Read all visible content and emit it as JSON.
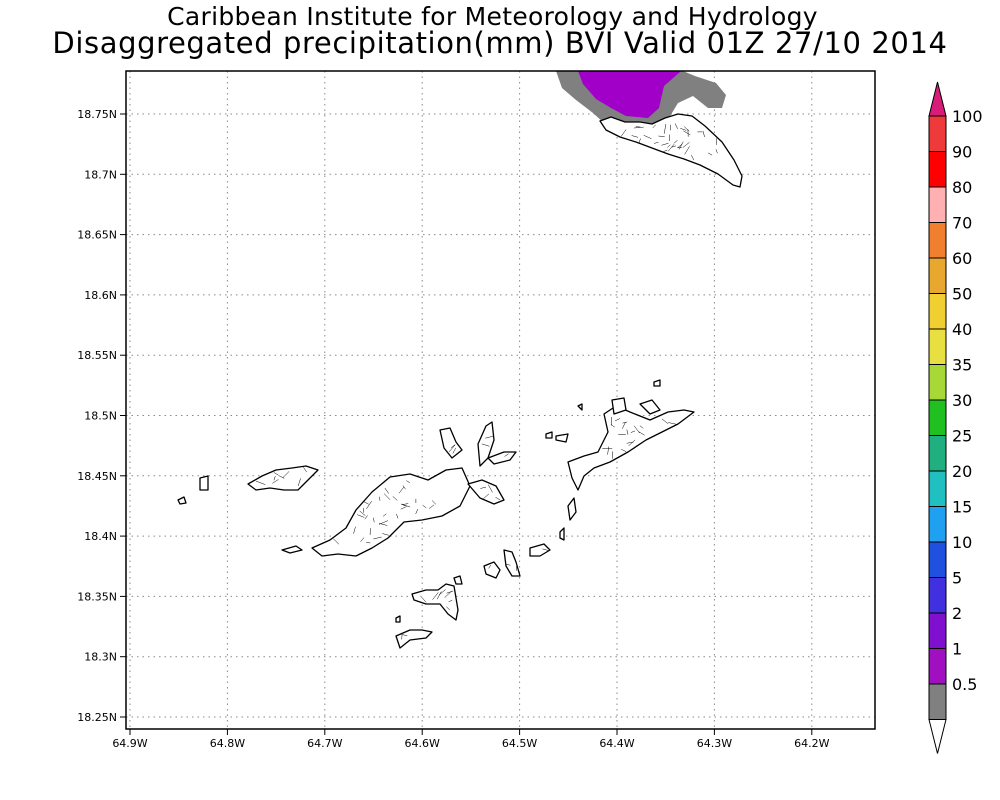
{
  "title_line1": "Caribbean Institute for Meteorology and Hydrology",
  "title_line2": "Disaggregated precipitation(mm) BVI Valid 01Z 27/10 2014",
  "map": {
    "x_ticks": [
      "64.9W",
      "64.8W",
      "64.7W",
      "64.6W",
      "64.5W",
      "64.4W",
      "64.3W",
      "64.2W"
    ],
    "y_ticks": [
      "18.75N",
      "18.7N",
      "18.65N",
      "18.6N",
      "18.55N",
      "18.5N",
      "18.45N",
      "18.4N",
      "18.35N",
      "18.3N",
      "18.25N"
    ],
    "grid": "dotted"
  },
  "colorbar": {
    "labels": [
      "100",
      "90",
      "80",
      "70",
      "60",
      "50",
      "40",
      "35",
      "30",
      "25",
      "20",
      "15",
      "10",
      "5",
      "2",
      "1",
      "0.5"
    ],
    "colors": [
      "#d81c7a",
      "#ee3a3a",
      "#ff0000",
      "#ffb0b0",
      "#f08030",
      "#e8a830",
      "#f0d030",
      "#e8e040",
      "#a8d838",
      "#20c020",
      "#20b080",
      "#20c0c0",
      "#20a0f0",
      "#2050e0",
      "#4030e0",
      "#8010d0",
      "#a010c0",
      "#808080",
      "#ffffff"
    ]
  },
  "precip": {
    "heavy_color": "#a000c8",
    "light_color": "#808080"
  }
}
